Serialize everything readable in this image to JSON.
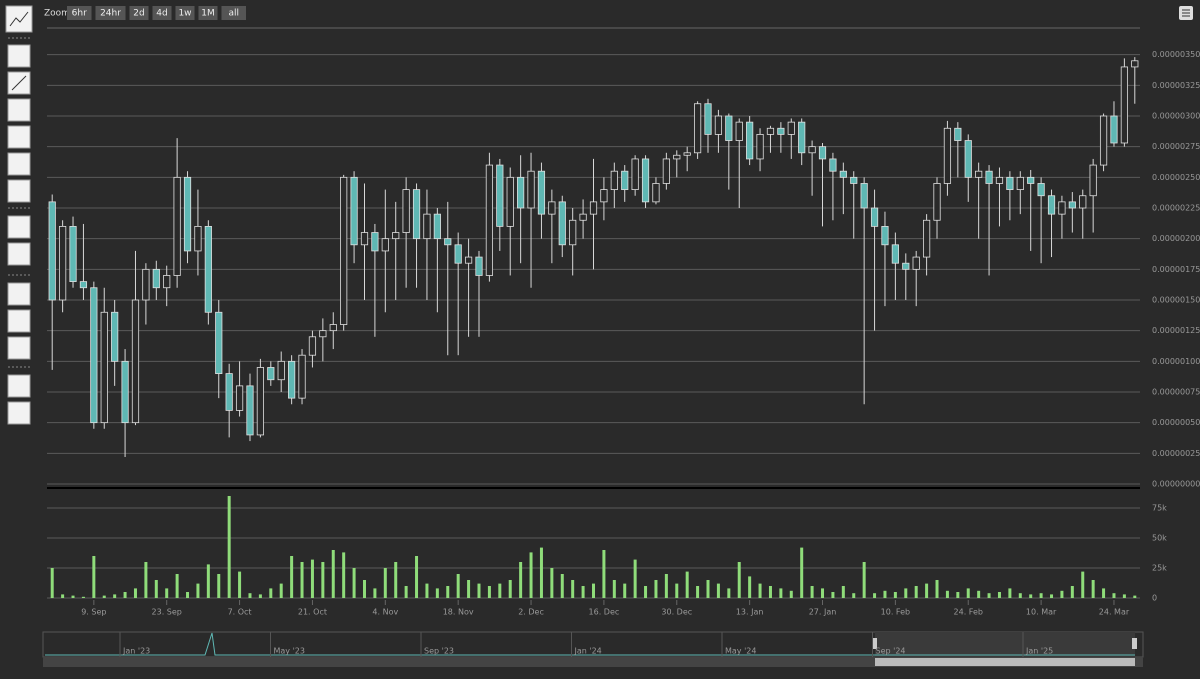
{
  "toolbar": {
    "zoom_label": "Zoom",
    "zoom_buttons": [
      "6hr",
      "24hr",
      "2d",
      "4d",
      "1w",
      "1M",
      "all"
    ]
  },
  "chart_data": {
    "type": "candlestick",
    "categories": [
      null,
      null,
      null,
      null,
      "9. Sep",
      null,
      null,
      null,
      null,
      null,
      null,
      "23. Sep",
      null,
      null,
      null,
      null,
      null,
      null,
      "7. Oct",
      null,
      null,
      null,
      null,
      null,
      null,
      "21. Oct",
      null,
      null,
      null,
      null,
      null,
      null,
      "4. Nov",
      null,
      null,
      null,
      null,
      null,
      null,
      "18. Nov",
      null,
      null,
      null,
      null,
      null,
      null,
      "2. Dec",
      null,
      null,
      null,
      null,
      null,
      null,
      "16. Dec",
      null,
      null,
      null,
      null,
      null,
      null,
      "30. Dec",
      null,
      null,
      null,
      null,
      null,
      null,
      "13. Jan",
      null,
      null,
      null,
      null,
      null,
      null,
      "27. Jan",
      null,
      null,
      null,
      null,
      null,
      null,
      "10. Feb",
      null,
      null,
      null,
      null,
      null,
      null,
      "24. Feb",
      null,
      null,
      null,
      null,
      null,
      null,
      "10. Mar",
      null,
      null,
      null,
      null,
      null,
      null,
      "24. Mar",
      null,
      null
    ],
    "ohlc": [
      [
        2.3e-06,
        2.36e-06,
        9.3e-07,
        1.5e-06
      ],
      [
        1.5e-06,
        2.15e-06,
        1.4e-06,
        2.1e-06
      ],
      [
        2.1e-06,
        2.18e-06,
        1.6e-06,
        1.65e-06
      ],
      [
        1.65e-06,
        2.12e-06,
        1.5e-06,
        1.6e-06
      ],
      [
        1.6e-06,
        1.65e-06,
        4.5e-07,
        5e-07
      ],
      [
        5e-07,
        1.6e-06,
        4.5e-07,
        1.4e-06
      ],
      [
        1.4e-06,
        1.5e-06,
        8e-07,
        1e-06
      ],
      [
        1e-06,
        1.1e-06,
        2.2e-07,
        5e-07
      ],
      [
        5e-07,
        1.9e-06,
        4.8e-07,
        1.5e-06
      ],
      [
        1.5e-06,
        1.8e-06,
        1.3e-06,
        1.75e-06
      ],
      [
        1.75e-06,
        1.82e-06,
        1.5e-06,
        1.6e-06
      ],
      [
        1.6e-06,
        1.78e-06,
        1.45e-06,
        1.7e-06
      ],
      [
        1.7e-06,
        2.82e-06,
        1.6e-06,
        2.5e-06
      ],
      [
        2.5e-06,
        2.55e-06,
        1.8e-06,
        1.9e-06
      ],
      [
        1.9e-06,
        2.4e-06,
        1.7e-06,
        2.1e-06
      ],
      [
        2.1e-06,
        2.15e-06,
        1.3e-06,
        1.4e-06
      ],
      [
        1.4e-06,
        1.5e-06,
        7e-07,
        9e-07
      ],
      [
        9e-07,
        9.8e-07,
        3.8e-07,
        6e-07
      ],
      [
        6e-07,
        1e-06,
        5.5e-07,
        8e-07
      ],
      [
        8e-07,
        9e-07,
        3.5e-07,
        4e-07
      ],
      [
        4e-07,
        1.02e-06,
        3.8e-07,
        9.5e-07
      ],
      [
        9.5e-07,
        1e-06,
        8e-07,
        8.5e-07
      ],
      [
        8.5e-07,
        1.08e-06,
        7.5e-07,
        1e-06
      ],
      [
        1e-06,
        1.05e-06,
        6.5e-07,
        7e-07
      ],
      [
        7e-07,
        1.1e-06,
        6.5e-07,
        1.05e-06
      ],
      [
        1.05e-06,
        1.25e-06,
        9.5e-07,
        1.2e-06
      ],
      [
        1.2e-06,
        1.35e-06,
        1e-06,
        1.25e-06
      ],
      [
        1.25e-06,
        1.4e-06,
        1.1e-06,
        1.3e-06
      ],
      [
        1.3e-06,
        2.52e-06,
        1.25e-06,
        2.5e-06
      ],
      [
        2.5e-06,
        2.55e-06,
        1.8e-06,
        1.95e-06
      ],
      [
        1.95e-06,
        2.45e-06,
        1.5e-06,
        2.05e-06
      ],
      [
        2.05e-06,
        2.12e-06,
        1.2e-06,
        1.9e-06
      ],
      [
        1.9e-06,
        2.4e-06,
        1.4e-06,
        2e-06
      ],
      [
        2e-06,
        2.3e-06,
        1.5e-06,
        2.05e-06
      ],
      [
        2.05e-06,
        2.5e-06,
        1.6e-06,
        2.4e-06
      ],
      [
        2.4e-06,
        2.45e-06,
        1.6e-06,
        2e-06
      ],
      [
        2e-06,
        2.4e-06,
        1.5e-06,
        2.2e-06
      ],
      [
        2.2e-06,
        2.25e-06,
        1.4e-06,
        2e-06
      ],
      [
        2e-06,
        2.3e-06,
        1.05e-06,
        1.95e-06
      ],
      [
        1.95e-06,
        2.05e-06,
        1.05e-06,
        1.8e-06
      ],
      [
        1.8e-06,
        2e-06,
        1.2e-06,
        1.85e-06
      ],
      [
        1.85e-06,
        1.9e-06,
        1.2e-06,
        1.7e-06
      ],
      [
        1.7e-06,
        2.7e-06,
        1.65e-06,
        2.6e-06
      ],
      [
        2.6e-06,
        2.65e-06,
        1.9e-06,
        2.1e-06
      ],
      [
        2.1e-06,
        2.58e-06,
        1.7e-06,
        2.5e-06
      ],
      [
        2.5e-06,
        2.68e-06,
        1.8e-06,
        2.25e-06
      ],
      [
        2.25e-06,
        2.7e-06,
        1.6e-06,
        2.55e-06
      ],
      [
        2.55e-06,
        2.62e-06,
        2e-06,
        2.2e-06
      ],
      [
        2.2e-06,
        2.4e-06,
        1.8e-06,
        2.3e-06
      ],
      [
        2.3e-06,
        2.35e-06,
        1.85e-06,
        1.95e-06
      ],
      [
        1.95e-06,
        2.25e-06,
        1.7e-06,
        2.15e-06
      ],
      [
        2.15e-06,
        2.32e-06,
        2e-06,
        2.2e-06
      ],
      [
        2.2e-06,
        2.65e-06,
        1.75e-06,
        2.3e-06
      ],
      [
        2.3e-06,
        2.5e-06,
        2.15e-06,
        2.4e-06
      ],
      [
        2.4e-06,
        2.62e-06,
        2.25e-06,
        2.55e-06
      ],
      [
        2.55e-06,
        2.6e-06,
        2.3e-06,
        2.4e-06
      ],
      [
        2.4e-06,
        2.68e-06,
        2.35e-06,
        2.65e-06
      ],
      [
        2.65e-06,
        2.68e-06,
        2.25e-06,
        2.3e-06
      ],
      [
        2.3e-06,
        2.5e-06,
        2.28e-06,
        2.45e-06
      ],
      [
        2.45e-06,
        2.7e-06,
        2.4e-06,
        2.65e-06
      ],
      [
        2.65e-06,
        2.72e-06,
        2.5e-06,
        2.68e-06
      ],
      [
        2.68e-06,
        2.75e-06,
        2.55e-06,
        2.7e-06
      ],
      [
        2.7e-06,
        3.12e-06,
        2.65e-06,
        3.1e-06
      ],
      [
        3.1e-06,
        3.14e-06,
        2.7e-06,
        2.85e-06
      ],
      [
        2.85e-06,
        3.05e-06,
        2.7e-06,
        3e-06
      ],
      [
        3e-06,
        3.02e-06,
        2.4e-06,
        2.8e-06
      ],
      [
        2.8e-06,
        2.98e-06,
        2.25e-06,
        2.95e-06
      ],
      [
        2.95e-06,
        3e-06,
        2.6e-06,
        2.65e-06
      ],
      [
        2.65e-06,
        2.9e-06,
        2.55e-06,
        2.85e-06
      ],
      [
        2.85e-06,
        2.92e-06,
        2.7e-06,
        2.9e-06
      ],
      [
        2.9e-06,
        2.95e-06,
        2.7e-06,
        2.85e-06
      ],
      [
        2.85e-06,
        2.98e-06,
        2.65e-06,
        2.95e-06
      ],
      [
        2.95e-06,
        2.98e-06,
        2.6e-06,
        2.7e-06
      ],
      [
        2.7e-06,
        2.8e-06,
        2.35e-06,
        2.75e-06
      ],
      [
        2.75e-06,
        2.78e-06,
        2.1e-06,
        2.65e-06
      ],
      [
        2.65e-06,
        2.7e-06,
        2.15e-06,
        2.55e-06
      ],
      [
        2.55e-06,
        2.62e-06,
        2.2e-06,
        2.5e-06
      ],
      [
        2.5e-06,
        2.55e-06,
        2e-06,
        2.45e-06
      ],
      [
        2.45e-06,
        2.5e-06,
        6.5e-07,
        2.25e-06
      ],
      [
        2.25e-06,
        2.4e-06,
        1.25e-06,
        2.1e-06
      ],
      [
        2.1e-06,
        2.22e-06,
        1.45e-06,
        1.95e-06
      ],
      [
        1.95e-06,
        2.05e-06,
        1.5e-06,
        1.8e-06
      ],
      [
        1.8e-06,
        1.88e-06,
        1.5e-06,
        1.75e-06
      ],
      [
        1.75e-06,
        1.9e-06,
        1.45e-06,
        1.85e-06
      ],
      [
        1.85e-06,
        2.2e-06,
        1.7e-06,
        2.15e-06
      ],
      [
        2.15e-06,
        2.5e-06,
        2e-06,
        2.45e-06
      ],
      [
        2.45e-06,
        2.96e-06,
        2.35e-06,
        2.9e-06
      ],
      [
        2.9e-06,
        2.95e-06,
        2.5e-06,
        2.8e-06
      ],
      [
        2.8e-06,
        2.85e-06,
        2.3e-06,
        2.5e-06
      ],
      [
        2.5e-06,
        2.62e-06,
        2e-06,
        2.55e-06
      ],
      [
        2.55e-06,
        2.6e-06,
        1.7e-06,
        2.45e-06
      ],
      [
        2.45e-06,
        2.58e-06,
        2.1e-06,
        2.5e-06
      ],
      [
        2.5e-06,
        2.55e-06,
        2.15e-06,
        2.4e-06
      ],
      [
        2.4e-06,
        2.55e-06,
        2.2e-06,
        2.5e-06
      ],
      [
        2.5e-06,
        2.56e-06,
        1.9e-06,
        2.45e-06
      ],
      [
        2.45e-06,
        2.5e-06,
        1.8e-06,
        2.35e-06
      ],
      [
        2.35e-06,
        2.4e-06,
        1.85e-06,
        2.2e-06
      ],
      [
        2.2e-06,
        2.35e-06,
        2e-06,
        2.3e-06
      ],
      [
        2.3e-06,
        2.38e-06,
        2.05e-06,
        2.25e-06
      ],
      [
        2.25e-06,
        2.4e-06,
        2e-06,
        2.35e-06
      ],
      [
        2.35e-06,
        2.65e-06,
        2.05e-06,
        2.6e-06
      ],
      [
        2.6e-06,
        3.02e-06,
        2.55e-06,
        3e-06
      ],
      [
        3e-06,
        3.12e-06,
        2.75e-06,
        2.78e-06
      ],
      [
        2.78e-06,
        3.47e-06,
        2.75e-06,
        3.4e-06
      ],
      [
        3.4e-06,
        3.48e-06,
        3.1e-06,
        3.45e-06
      ]
    ],
    "up_color": "#2a2a2a",
    "down_color": "#5fb8b4",
    "ylim": [
      0,
      3.75e-06
    ],
    "yticks": [
      {
        "value": 0,
        "label": "0.00000000"
      },
      {
        "value": 2.5e-07,
        "label": "0.00000025"
      },
      {
        "value": 5e-07,
        "label": "0.00000050"
      },
      {
        "value": 7.5e-07,
        "label": "0.00000075"
      },
      {
        "value": 1e-06,
        "label": "0.00000100"
      },
      {
        "value": 1.25e-06,
        "label": "0.00000125"
      },
      {
        "value": 1.5e-06,
        "label": "0.00000150"
      },
      {
        "value": 1.75e-06,
        "label": "0.00000175"
      },
      {
        "value": 2e-06,
        "label": "0.00000200"
      },
      {
        "value": 2.25e-06,
        "label": "0.00000225"
      },
      {
        "value": 2.5e-06,
        "label": "0.00000250"
      },
      {
        "value": 2.75e-06,
        "label": "0.00000275"
      },
      {
        "value": 3e-06,
        "label": "0.00000300"
      },
      {
        "value": 3.25e-06,
        "label": "0.00000325"
      },
      {
        "value": 3.5e-06,
        "label": "0.00000350"
      }
    ],
    "grid": true,
    "volume": {
      "color": "#8fdc7a",
      "ylim": [
        0,
        90000
      ],
      "yticks": [
        0,
        {
          "value": 25000,
          "label": "25k"
        },
        {
          "value": 50000,
          "label": "50k"
        },
        {
          "value": 75000,
          "label": "75k"
        }
      ],
      "values": [
        25000,
        3000,
        2000,
        1000,
        35000,
        2000,
        3000,
        5000,
        8000,
        30000,
        15000,
        8000,
        20000,
        5000,
        12000,
        28000,
        20000,
        85000,
        22000,
        4000,
        3000,
        8000,
        12000,
        35000,
        30000,
        32000,
        30000,
        40000,
        38000,
        25000,
        15000,
        8000,
        25000,
        30000,
        10000,
        35000,
        12000,
        8000,
        10000,
        20000,
        15000,
        12000,
        10000,
        12000,
        15000,
        30000,
        38000,
        42000,
        25000,
        20000,
        15000,
        10000,
        12000,
        40000,
        15000,
        12000,
        32000,
        10000,
        15000,
        20000,
        12000,
        22000,
        10000,
        15000,
        12000,
        8000,
        30000,
        18000,
        12000,
        10000,
        8000,
        6000,
        42000,
        10000,
        8000,
        5000,
        10000,
        4000,
        30000,
        4000,
        6000,
        5000,
        8000,
        10000,
        12000,
        15000,
        6000,
        5000,
        8000,
        6000,
        4000,
        5000,
        8000,
        4000,
        3000,
        4000,
        3000,
        6000,
        10000,
        22000,
        15000,
        8000,
        4000,
        3000,
        2000
      ]
    }
  },
  "navigator": {
    "labels": [
      "Jan '23",
      "May '23",
      "Sep '23",
      "Jan '24",
      "May '24",
      "Sep '24",
      "Jan '25"
    ]
  }
}
